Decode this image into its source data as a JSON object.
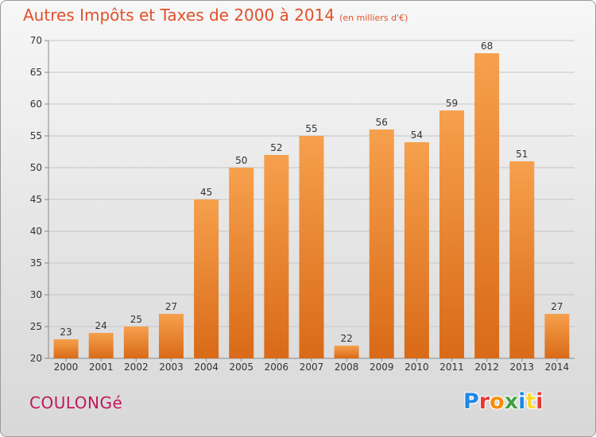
{
  "header": {
    "title": "Autres Impôts et Taxes de 2000 à 2014",
    "unit": "(en milliers d'€)"
  },
  "footer": {
    "place": "COULONGé",
    "logo_letters": [
      "P",
      "r",
      "o",
      "x",
      "i",
      "t",
      "i"
    ],
    "logo_colors": [
      "#1e88e5",
      "#e53935",
      "#fb8c00",
      "#43a047",
      "#1e88e5",
      "#fdd835",
      "#e53935"
    ]
  },
  "colors": {
    "bar_light": "#f6a04d",
    "bar_dark": "#d96a17",
    "grid": "#c4c4c4",
    "axis_text": "#333333"
  },
  "chart_data": {
    "type": "bar",
    "categories": [
      "2000",
      "2001",
      "2002",
      "2003",
      "2004",
      "2005",
      "2006",
      "2007",
      "2008",
      "2009",
      "2010",
      "2011",
      "2012",
      "2013",
      "2014"
    ],
    "values": [
      23,
      24,
      25,
      27,
      45,
      50,
      52,
      55,
      22,
      56,
      54,
      59,
      68,
      51,
      27
    ],
    "ylim": [
      20,
      70
    ],
    "yticks": [
      20,
      25,
      30,
      35,
      40,
      45,
      50,
      55,
      60,
      65,
      70
    ],
    "grid": true
  }
}
